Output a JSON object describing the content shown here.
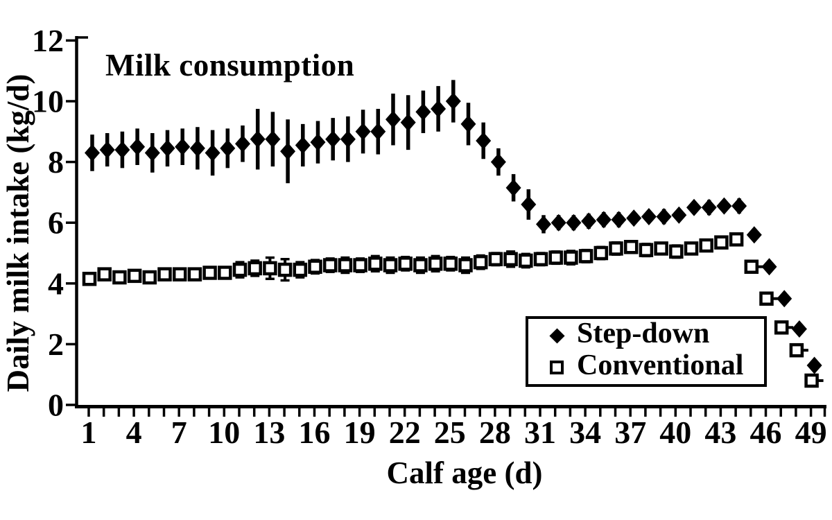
{
  "figure": {
    "title": "Milk consumption",
    "x_axis_title": "Calf age (d)",
    "y_axis_title": "Daily milk intake (kg/d)",
    "background_color": "#ffffff",
    "foreground_color": "#000000"
  },
  "legend": {
    "position": "lower-right",
    "items": [
      {
        "label": "Step-down",
        "marker": "filled-diamond-icon"
      },
      {
        "label": "Conventional",
        "marker": "open-square-icon"
      }
    ]
  },
  "chart_data": {
    "type": "scatter",
    "title": "Milk consumption",
    "xlabel": "Calf age (d)",
    "ylabel": "Daily milk intake (kg/d)",
    "xlim": [
      0,
      50
    ],
    "ylim": [
      0,
      12
    ],
    "grid": false,
    "legend_position": "lower-right",
    "error_bars": true,
    "xtick_labels": [
      1,
      4,
      7,
      10,
      13,
      16,
      19,
      22,
      25,
      28,
      31,
      34,
      37,
      40,
      43,
      46,
      49
    ],
    "ytick_labels": [
      0,
      2,
      4,
      6,
      8,
      10,
      12
    ],
    "x": [
      1,
      2,
      3,
      4,
      5,
      6,
      7,
      8,
      9,
      10,
      11,
      12,
      13,
      14,
      15,
      16,
      17,
      18,
      19,
      20,
      21,
      22,
      23,
      24,
      25,
      26,
      27,
      28,
      29,
      30,
      31,
      32,
      33,
      34,
      35,
      36,
      37,
      38,
      39,
      40,
      41,
      42,
      43,
      44,
      45,
      46,
      47,
      48,
      49
    ],
    "series": [
      {
        "name": "Step-down",
        "marker": "filled-diamond",
        "values": [
          8.3,
          8.4,
          8.4,
          8.5,
          8.3,
          8.45,
          8.5,
          8.45,
          8.3,
          8.45,
          8.6,
          8.75,
          8.75,
          8.35,
          8.55,
          8.65,
          8.75,
          8.75,
          9.0,
          9.0,
          9.4,
          9.3,
          9.65,
          9.75,
          10.0,
          9.25,
          8.7,
          8.0,
          7.15,
          6.6,
          5.95,
          6.0,
          6.0,
          6.05,
          6.1,
          6.1,
          6.15,
          6.2,
          6.2,
          6.25,
          6.5,
          6.5,
          6.55,
          6.55,
          5.6,
          4.55,
          3.5,
          2.5,
          1.3
        ],
        "errors": [
          0.6,
          0.55,
          0.6,
          0.6,
          0.65,
          0.6,
          0.6,
          0.7,
          0.75,
          0.65,
          0.6,
          1.0,
          0.9,
          1.05,
          0.7,
          0.7,
          0.7,
          0.75,
          0.72,
          0.75,
          0.85,
          0.9,
          0.7,
          0.75,
          0.7,
          0.7,
          0.6,
          0.45,
          0.45,
          0.5,
          0.3,
          0.25,
          0.25,
          0.25,
          0.25,
          0.25,
          0.2,
          0.2,
          0.25,
          0.2,
          0.2,
          0.25,
          0.2,
          0.25,
          0.12,
          0.1,
          0.1,
          0.1,
          0.08
        ]
      },
      {
        "name": "Conventional",
        "marker": "open-square",
        "values": [
          4.15,
          4.3,
          4.2,
          4.25,
          4.2,
          4.3,
          4.3,
          4.3,
          4.35,
          4.35,
          4.45,
          4.5,
          4.5,
          4.45,
          4.45,
          4.55,
          4.6,
          4.6,
          4.6,
          4.65,
          4.6,
          4.65,
          4.6,
          4.65,
          4.65,
          4.6,
          4.7,
          4.8,
          4.8,
          4.75,
          4.8,
          4.85,
          4.85,
          4.9,
          5.0,
          5.15,
          5.2,
          5.1,
          5.15,
          5.05,
          5.15,
          5.25,
          5.35,
          5.45,
          4.55,
          3.5,
          2.55,
          1.8,
          0.8
        ],
        "errors": [
          0.15,
          0.15,
          0.18,
          0.15,
          0.18,
          0.15,
          0.15,
          0.18,
          0.15,
          0.18,
          0.25,
          0.25,
          0.35,
          0.35,
          0.25,
          0.22,
          0.22,
          0.25,
          0.22,
          0.25,
          0.25,
          0.22,
          0.25,
          0.25,
          0.22,
          0.25,
          0.22,
          0.2,
          0.25,
          0.22,
          0.2,
          0.2,
          0.22,
          0.2,
          0.2,
          0.2,
          0.18,
          0.2,
          0.18,
          0.2,
          0.15,
          0.15,
          0.15,
          0.15,
          0.1,
          0.1,
          0.1,
          0.1,
          0.08
        ]
      }
    ]
  }
}
